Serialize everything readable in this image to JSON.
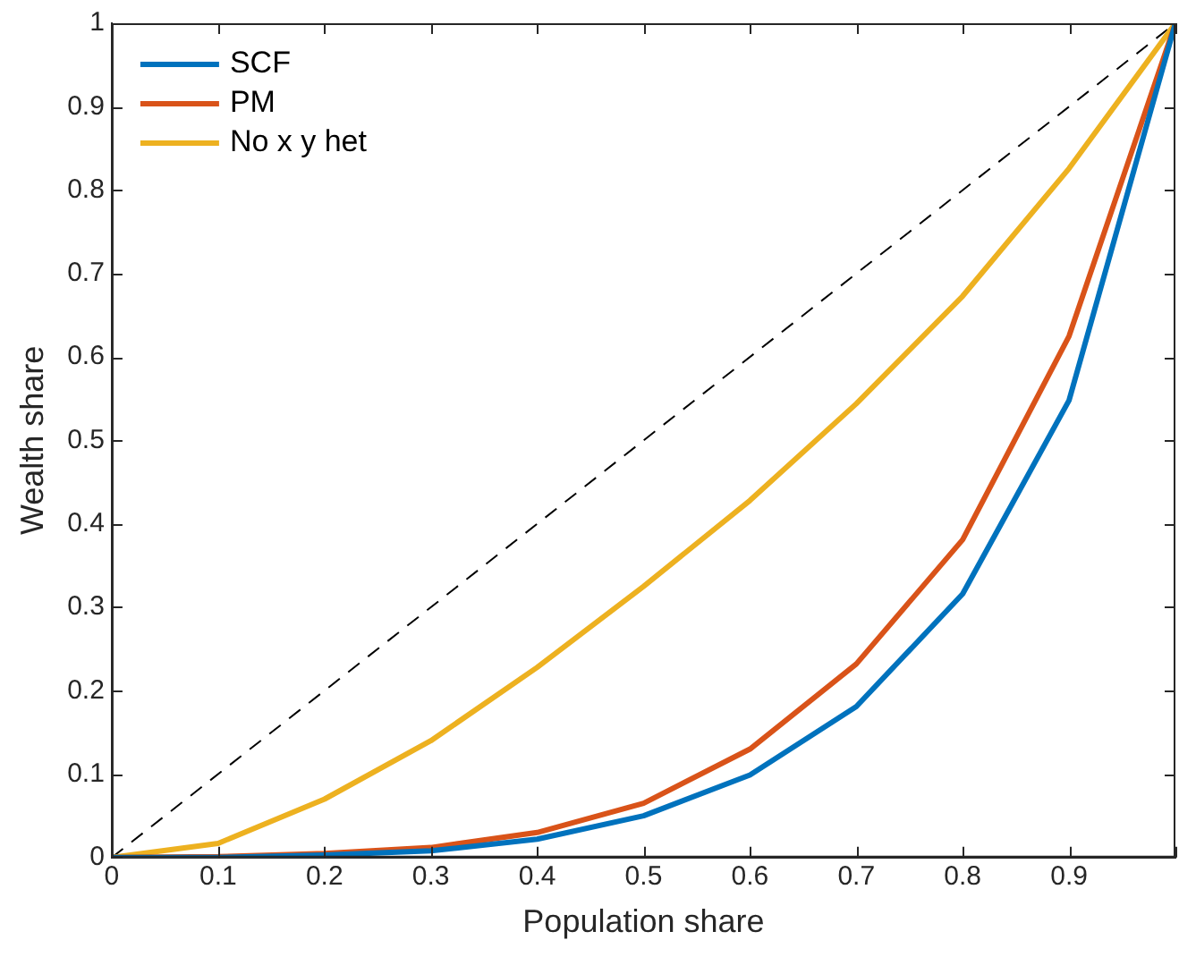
{
  "chart_data": {
    "type": "line",
    "xlabel": "Population share",
    "ylabel": "Wealth share",
    "x": [
      0,
      0.1,
      0.2,
      0.3,
      0.4,
      0.5,
      0.6,
      0.7,
      0.8,
      0.9,
      1
    ],
    "series": [
      {
        "name": "SCF",
        "color": "#0072bd",
        "values": [
          0,
          0.0,
          0.003,
          0.008,
          0.022,
          0.05,
          0.099,
          0.181,
          0.316,
          0.548,
          1
        ]
      },
      {
        "name": "PM",
        "color": "#d95319",
        "values": [
          0,
          0.001,
          0.005,
          0.012,
          0.03,
          0.065,
          0.13,
          0.232,
          0.381,
          0.625,
          1
        ]
      },
      {
        "name": "No x y het",
        "color": "#edb120",
        "values": [
          0,
          0.017,
          0.07,
          0.14,
          0.228,
          0.325,
          0.428,
          0.544,
          0.673,
          0.826,
          1
        ]
      },
      {
        "color": "#000000",
        "line_style": "dashed",
        "x": [
          0,
          1
        ],
        "values": [
          0,
          1
        ]
      }
    ],
    "xlim": [
      0,
      1
    ],
    "ylim": [
      0,
      1
    ],
    "xticks": [
      0,
      0.1,
      0.2,
      0.3,
      0.4,
      0.5,
      0.6,
      0.7,
      0.8,
      0.9,
      {
        "value": 1,
        "label": null
      }
    ],
    "yticks": [
      0,
      0.1,
      0.2,
      0.3,
      0.4,
      0.5,
      0.6,
      0.7,
      0.8,
      0.9,
      1
    ],
    "grid": false,
    "legend": "top left",
    "marker": "none",
    "line_style": "solid"
  }
}
